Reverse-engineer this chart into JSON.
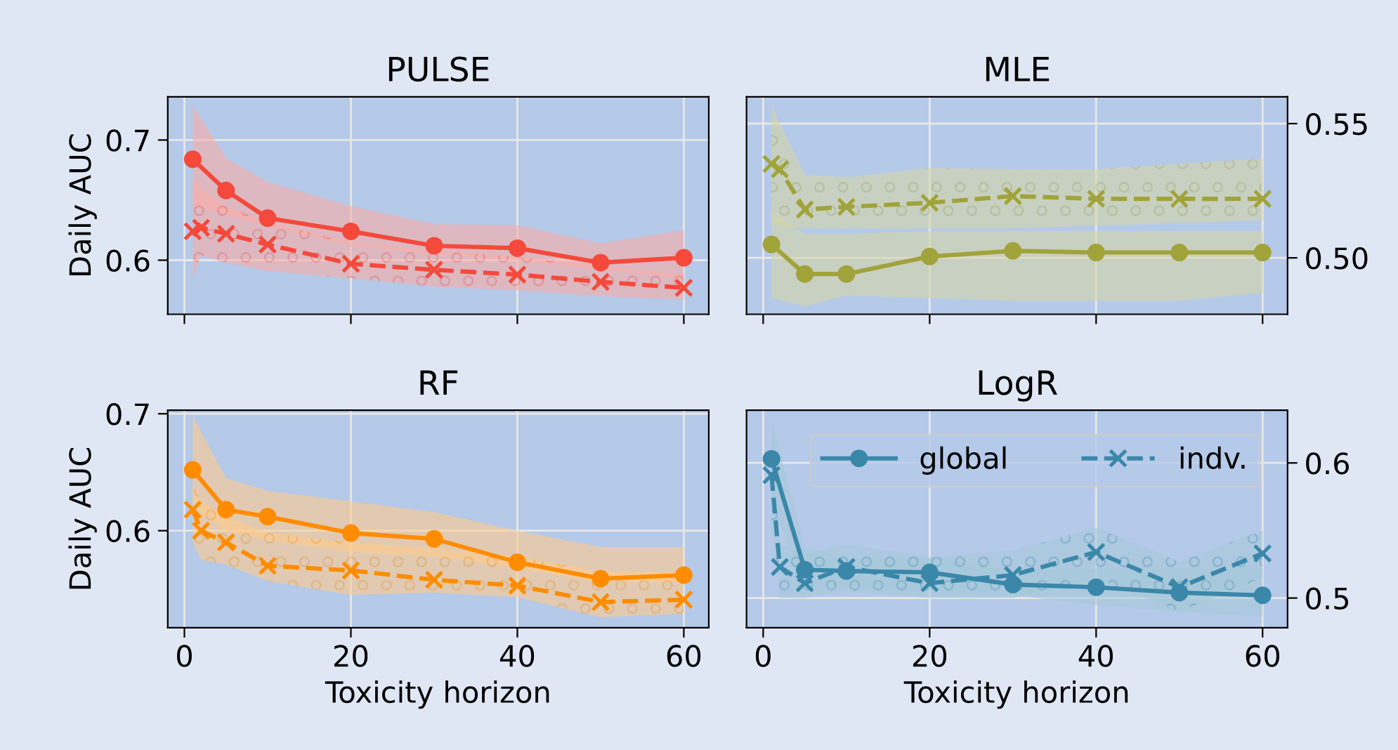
{
  "chart_data": [
    {
      "type": "line",
      "title": "PULSE",
      "ylabel": "Daily AUC",
      "xlim": [
        -2,
        63
      ],
      "xticks": [
        0,
        20,
        40,
        60
      ],
      "ylim": [
        0.555,
        0.736
      ],
      "yticks": [
        0.6,
        0.7
      ],
      "tick_labels": "y",
      "grid": true,
      "legend": false,
      "series": [
        {
          "color": "#f4493b",
          "marker": "circle",
          "line_style": "solid",
          "x": [
            1,
            5,
            10,
            20,
            30,
            40,
            50,
            60
          ],
          "values": [
            0.684,
            0.658,
            0.635,
            0.624,
            0.612,
            0.61,
            0.598,
            0.602
          ],
          "lower": [
            0.645,
            0.638,
            0.628,
            0.612,
            0.605,
            0.6,
            0.592,
            0.585
          ],
          "upper": [
            0.729,
            0.685,
            0.665,
            0.645,
            0.63,
            0.629,
            0.614,
            0.625
          ]
        },
        {
          "color": "#f4493b",
          "marker": "cross",
          "line_style": "dashed",
          "x": [
            1,
            2,
            5,
            10,
            20,
            30,
            40,
            50,
            60
          ],
          "values": [
            0.624,
            0.627,
            0.622,
            0.613,
            0.597,
            0.592,
            0.588,
            0.582,
            0.577
          ],
          "lower": [
            0.585,
            0.604,
            0.598,
            0.591,
            0.585,
            0.578,
            0.575,
            0.57,
            0.567
          ],
          "upper": [
            0.668,
            0.66,
            0.645,
            0.632,
            0.615,
            0.608,
            0.603,
            0.595,
            0.588
          ]
        }
      ]
    },
    {
      "type": "line",
      "title": "MLE",
      "xlim": [
        -2,
        63
      ],
      "xticks": [
        0,
        20,
        40,
        60
      ],
      "ylim": [
        0.479,
        0.56
      ],
      "yticks": [
        {
          "value": 0.5,
          "label": "0.50"
        },
        {
          "value": 0.55,
          "label": "0.55"
        }
      ],
      "tick_labels": "y",
      "grid": true,
      "legend": false,
      "series": [
        {
          "color": "#a1a33b",
          "marker": "circle",
          "line_style": "solid",
          "x": [
            1,
            5,
            10,
            20,
            30,
            40,
            50,
            60
          ],
          "values": [
            0.505,
            0.494,
            0.494,
            0.5005,
            0.5026,
            0.502,
            0.502,
            0.502
          ],
          "lower": [
            0.485,
            0.482,
            0.486,
            0.485,
            0.484,
            0.484,
            0.484,
            0.487
          ],
          "upper": [
            0.517,
            0.509,
            0.509,
            0.51,
            0.51,
            0.51,
            0.51,
            0.51
          ]
        },
        {
          "color": "#a1a33b",
          "marker": "cross",
          "line_style": "dashed",
          "x": [
            1,
            2,
            5,
            10,
            20,
            30,
            40,
            50,
            60
          ],
          "values": [
            0.535,
            0.533,
            0.518,
            0.519,
            0.5205,
            0.523,
            0.522,
            0.522,
            0.522
          ],
          "lower": [
            0.514,
            0.512,
            0.511,
            0.511,
            0.511,
            0.511,
            0.512,
            0.513,
            0.514
          ],
          "upper": [
            0.557,
            0.55,
            0.531,
            0.53,
            0.5335,
            0.533,
            0.533,
            0.535,
            0.537
          ]
        }
      ]
    },
    {
      "type": "line",
      "title": "RF",
      "ylabel": "Daily AUC",
      "xlabel": "Toxicity horizon",
      "xlim": [
        -2,
        63
      ],
      "xticks": [
        0,
        20,
        40,
        60
      ],
      "ylim": [
        0.517,
        0.703
      ],
      "yticks": [
        0.6,
        0.7
      ],
      "grid": true,
      "legend": false,
      "series": [
        {
          "color": "#ff8c00",
          "marker": "circle",
          "line_style": "solid",
          "x": [
            1,
            5,
            10,
            20,
            30,
            40,
            50,
            60
          ],
          "values": [
            0.652,
            0.618,
            0.612,
            0.598,
            0.593,
            0.573,
            0.559,
            0.562
          ],
          "lower": [
            0.62,
            0.6,
            0.592,
            0.582,
            0.578,
            0.568,
            0.556,
            0.556
          ],
          "upper": [
            0.698,
            0.645,
            0.634,
            0.625,
            0.616,
            0.6,
            0.586,
            0.586
          ]
        },
        {
          "color": "#ff8c00",
          "marker": "cross",
          "line_style": "dashed",
          "x": [
            1,
            2,
            5,
            10,
            20,
            30,
            40,
            50,
            60
          ],
          "values": [
            0.618,
            0.6,
            0.59,
            0.57,
            0.566,
            0.558,
            0.553,
            0.539,
            0.541
          ],
          "lower": [
            0.59,
            0.575,
            0.571,
            0.557,
            0.545,
            0.547,
            0.543,
            0.526,
            0.529
          ],
          "upper": [
            0.64,
            0.625,
            0.612,
            0.598,
            0.59,
            0.585,
            0.578,
            0.565,
            0.565
          ]
        }
      ]
    },
    {
      "type": "line",
      "title": "LogR",
      "xlabel": "Toxicity horizon",
      "xlim": [
        -2,
        63
      ],
      "xticks": [
        0,
        20,
        40,
        60
      ],
      "ylim": [
        0.478,
        0.639
      ],
      "yticks": [
        0.5,
        0.6
      ],
      "grid": true,
      "legend": "top right",
      "series": [
        {
          "name": "global",
          "color": "#3a87a9",
          "marker": "circle",
          "line_style": "solid",
          "x": [
            1,
            5,
            10,
            20,
            30,
            40,
            50,
            60
          ],
          "values": [
            0.603,
            0.521,
            0.52,
            0.519,
            0.51,
            0.508,
            0.504,
            0.502
          ],
          "lower": [
            0.57,
            0.509,
            0.508,
            0.506,
            0.502,
            0.495,
            0.49,
            0.486
          ],
          "upper": [
            0.632,
            0.537,
            0.53,
            0.53,
            0.521,
            0.521,
            0.521,
            0.522
          ]
        },
        {
          "name": "indv.",
          "color": "#3a87a9",
          "marker": "cross",
          "line_style": "dashed",
          "x": [
            1,
            2,
            5,
            10,
            20,
            30,
            40,
            50,
            60
          ],
          "values": [
            0.591,
            0.523,
            0.511,
            0.523,
            0.511,
            0.517,
            0.534,
            0.508,
            0.533
          ],
          "lower": [
            0.555,
            0.5,
            0.5,
            0.505,
            0.5,
            0.5,
            0.515,
            0.49,
            0.515
          ],
          "upper": [
            0.625,
            0.54,
            0.533,
            0.54,
            0.53,
            0.535,
            0.552,
            0.527,
            0.55
          ]
        }
      ]
    }
  ]
}
